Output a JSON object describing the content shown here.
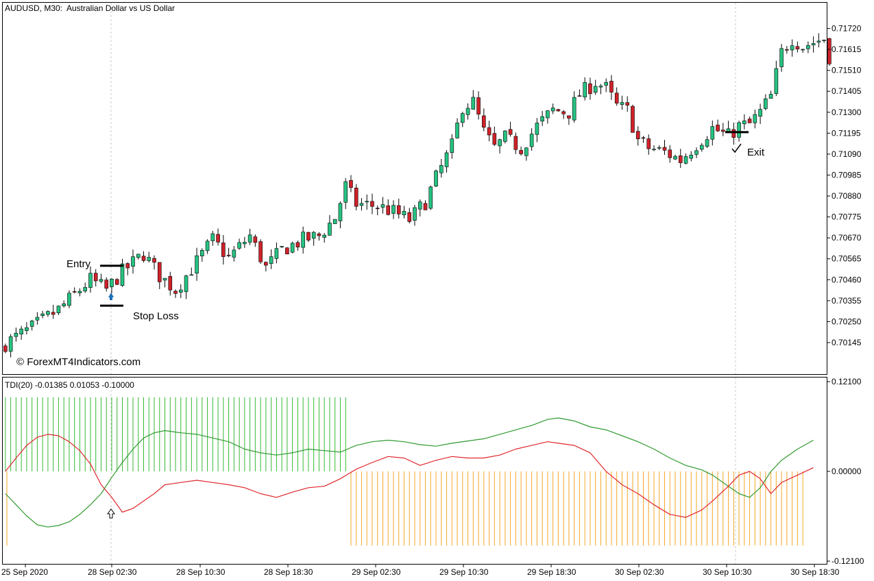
{
  "header": {
    "symbol_label": "AUDUSD, M30:",
    "symbol_desc": "Australian Dollar vs US Dollar",
    "indicator_label": "TDI(20) -0.01385 0.01053 -0.10000"
  },
  "watermark": "© ForexMT4Indicators.com",
  "annotations": {
    "entry": "Entry",
    "stop_loss": "Stop Loss",
    "exit": "Exit"
  },
  "colors": {
    "bull": "#26c281",
    "bear": "#d0222a",
    "tdi_green": "#2e9a2e",
    "tdi_red": "#e0262a",
    "hist_green": "#33b833",
    "hist_orange": "#f5a623",
    "arrow_blue": "#1f6fb5"
  },
  "chart_data": [
    {
      "type": "candlestick",
      "title": "AUDUSD, M30: Australian Dollar vs US Dollar",
      "ylim": [
        0.7009,
        0.7177
      ],
      "y_ticks": [
        "0.71720",
        "0.71615",
        "0.71510",
        "0.71405",
        "0.71300",
        "0.71195",
        "0.71090",
        "0.70985",
        "0.70880",
        "0.70775",
        "0.70670",
        "0.70565",
        "0.70460",
        "0.70355",
        "0.70250",
        "0.70145"
      ],
      "x_ticks": [
        "25 Sep 2020",
        "28 Sep 02:30",
        "28 Sep 10:30",
        "28 Sep 18:30",
        "29 Sep 02:30",
        "29 Sep 10:30",
        "29 Sep 18:30",
        "30 Sep 02:30",
        "30 Sep 10:30",
        "30 Sep 18:30"
      ],
      "entry_price": 0.7053,
      "stop_loss_price": 0.7033,
      "exit_price": 0.712,
      "close_path": [
        [
          0,
          0.7014
        ],
        [
          5,
          0.7022
        ],
        [
          10,
          0.7031
        ],
        [
          16,
          0.7046
        ],
        [
          19,
          0.7041
        ],
        [
          22,
          0.705
        ],
        [
          26,
          0.7059
        ],
        [
          29,
          0.7048
        ],
        [
          32,
          0.7041
        ],
        [
          36,
          0.7055
        ],
        [
          39,
          0.7066
        ],
        [
          42,
          0.7057
        ],
        [
          46,
          0.7068
        ],
        [
          49,
          0.7052
        ],
        [
          52,
          0.7061
        ],
        [
          56,
          0.7066
        ],
        [
          59,
          0.7068
        ],
        [
          62,
          0.7077
        ],
        [
          64,
          0.7093
        ],
        [
          66,
          0.7084
        ],
        [
          70,
          0.7083
        ],
        [
          73,
          0.708
        ],
        [
          76,
          0.7076
        ],
        [
          79,
          0.7085
        ],
        [
          81,
          0.7097
        ],
        [
          84,
          0.7113
        ],
        [
          86,
          0.7133
        ],
        [
          88,
          0.7135
        ],
        [
          90,
          0.712
        ],
        [
          92,
          0.7112
        ],
        [
          94,
          0.7117
        ],
        [
          97,
          0.7112
        ],
        [
          100,
          0.7123
        ],
        [
          103,
          0.7131
        ],
        [
          106,
          0.713
        ],
        [
          108,
          0.7139
        ],
        [
          111,
          0.7145
        ],
        [
          113,
          0.7142
        ],
        [
          115,
          0.7133
        ],
        [
          117,
          0.7131
        ],
        [
          119,
          0.7116
        ],
        [
          121,
          0.7112
        ],
        [
          124,
          0.711
        ],
        [
          127,
          0.7106
        ],
        [
          130,
          0.7114
        ],
        [
          133,
          0.7122
        ],
        [
          136,
          0.7118
        ],
        [
          138,
          0.7123
        ],
        [
          140,
          0.7124
        ],
        [
          142,
          0.713
        ],
        [
          144,
          0.7138
        ],
        [
          146,
          0.716
        ],
        [
          148,
          0.7167
        ],
        [
          150,
          0.7163
        ],
        [
          152,
          0.7165
        ],
        [
          154,
          0.7167
        ],
        [
          155,
          0.7158
        ]
      ]
    },
    {
      "type": "line",
      "title": "TDI(20) -0.01385 0.01053 -0.10000",
      "ylim": [
        -0.121,
        0.121
      ],
      "y_ticks": [
        "0.12100",
        "0.00000",
        "-0.12100"
      ],
      "values": [
        -0.01385,
        0.01053,
        -0.1
      ],
      "series": [
        {
          "points": [
            [
              0,
              -0.03
            ],
            [
              2,
              -0.045
            ],
            [
              4,
              -0.06
            ],
            [
              6,
              -0.072
            ],
            [
              8,
              -0.075
            ],
            [
              10,
              -0.073
            ],
            [
              12,
              -0.068
            ],
            [
              14,
              -0.058
            ],
            [
              16,
              -0.045
            ],
            [
              18,
              -0.03
            ],
            [
              20,
              -0.008
            ],
            [
              22,
              0.012
            ],
            [
              24,
              0.03
            ],
            [
              26,
              0.045
            ],
            [
              28,
              0.052
            ],
            [
              30,
              0.055
            ],
            [
              33,
              0.052
            ],
            [
              36,
              0.05
            ],
            [
              39,
              0.045
            ],
            [
              42,
              0.04
            ],
            [
              45,
              0.03
            ],
            [
              48,
              0.025
            ],
            [
              51,
              0.022
            ],
            [
              54,
              0.025
            ],
            [
              57,
              0.03
            ],
            [
              60,
              0.028
            ],
            [
              63,
              0.026
            ],
            [
              66,
              0.035
            ],
            [
              69,
              0.04
            ],
            [
              72,
              0.042
            ],
            [
              75,
              0.04
            ],
            [
              78,
              0.036
            ],
            [
              81,
              0.034
            ],
            [
              84,
              0.038
            ],
            [
              87,
              0.041
            ],
            [
              90,
              0.044
            ],
            [
              93,
              0.05
            ],
            [
              96,
              0.056
            ],
            [
              99,
              0.062
            ],
            [
              102,
              0.07
            ],
            [
              104,
              0.072
            ],
            [
              107,
              0.068
            ],
            [
              110,
              0.06
            ],
            [
              113,
              0.056
            ],
            [
              116,
              0.048
            ],
            [
              119,
              0.04
            ],
            [
              122,
              0.03
            ],
            [
              125,
              0.018
            ],
            [
              128,
              0.008
            ],
            [
              131,
              0.002
            ],
            [
              133,
              -0.005
            ],
            [
              136,
              -0.02
            ],
            [
              138,
              -0.03
            ],
            [
              140,
              -0.035
            ],
            [
              142,
              -0.022
            ],
            [
              144,
              0.0
            ],
            [
              146,
              0.015
            ],
            [
              149,
              0.03
            ],
            [
              152,
              0.042
            ]
          ]
        },
        {
          "points": [
            [
              0,
              0.0
            ],
            [
              2,
              0.018
            ],
            [
              4,
              0.035
            ],
            [
              6,
              0.046
            ],
            [
              8,
              0.05
            ],
            [
              10,
              0.048
            ],
            [
              12,
              0.04
            ],
            [
              14,
              0.028
            ],
            [
              16,
              0.01
            ],
            [
              18,
              -0.018
            ],
            [
              20,
              -0.035
            ],
            [
              22,
              -0.055
            ],
            [
              24,
              -0.05
            ],
            [
              26,
              -0.04
            ],
            [
              28,
              -0.03
            ],
            [
              30,
              -0.018
            ],
            [
              33,
              -0.015
            ],
            [
              36,
              -0.012
            ],
            [
              39,
              -0.015
            ],
            [
              42,
              -0.018
            ],
            [
              45,
              -0.022
            ],
            [
              48,
              -0.03
            ],
            [
              51,
              -0.035
            ],
            [
              54,
              -0.028
            ],
            [
              57,
              -0.022
            ],
            [
              60,
              -0.02
            ],
            [
              63,
              -0.01
            ],
            [
              66,
              0.003
            ],
            [
              69,
              0.012
            ],
            [
              72,
              0.02
            ],
            [
              75,
              0.018
            ],
            [
              78,
              0.008
            ],
            [
              81,
              0.015
            ],
            [
              84,
              0.02
            ],
            [
              87,
              0.018
            ],
            [
              90,
              0.018
            ],
            [
              93,
              0.022
            ],
            [
              96,
              0.03
            ],
            [
              99,
              0.035
            ],
            [
              102,
              0.04
            ],
            [
              104,
              0.038
            ],
            [
              107,
              0.035
            ],
            [
              110,
              0.025
            ],
            [
              113,
              0.0
            ],
            [
              116,
              -0.018
            ],
            [
              119,
              -0.03
            ],
            [
              122,
              -0.045
            ],
            [
              125,
              -0.058
            ],
            [
              128,
              -0.062
            ],
            [
              131,
              -0.052
            ],
            [
              133,
              -0.04
            ],
            [
              136,
              -0.02
            ],
            [
              138,
              -0.005
            ],
            [
              140,
              0.0
            ],
            [
              142,
              -0.01
            ],
            [
              144,
              -0.03
            ],
            [
              146,
              -0.015
            ],
            [
              149,
              -0.005
            ],
            [
              152,
              0.005
            ]
          ]
        }
      ],
      "histogram": [
        {
          "from": 0,
          "to": 64,
          "value": 0.1
        },
        {
          "from": 65,
          "to": 150,
          "value": -0.1
        }
      ]
    }
  ]
}
